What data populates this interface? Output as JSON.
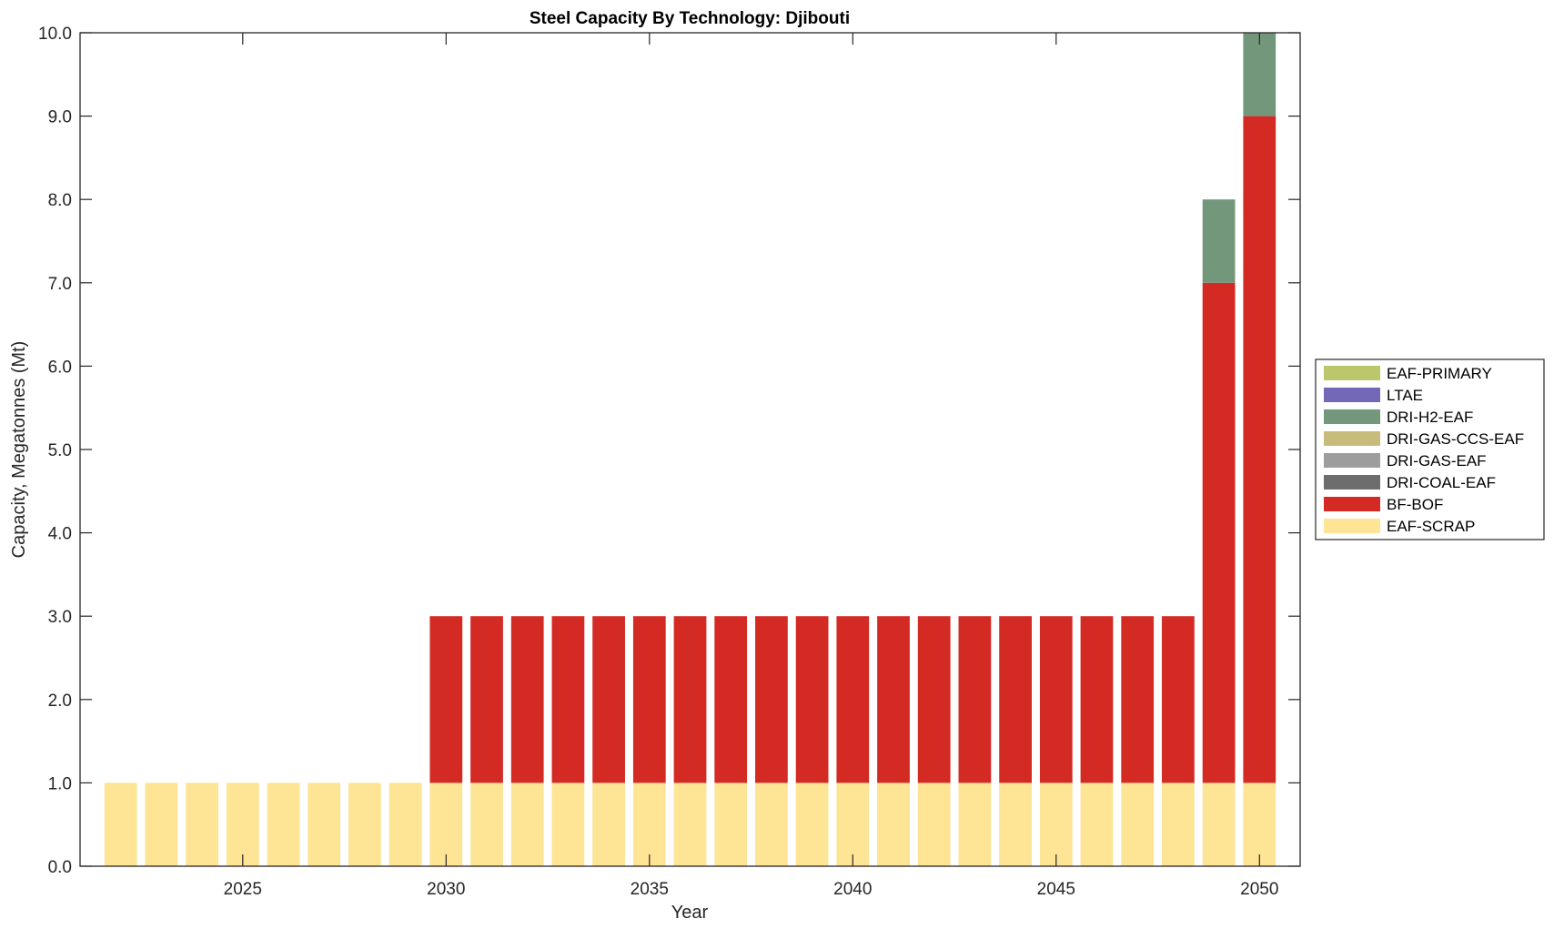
{
  "chart_data": {
    "type": "bar",
    "stacked": true,
    "title": "Steel Capacity By Technology: Djibouti",
    "xlabel": "Year",
    "ylabel": "Capacity, Megatonnes (Mt)",
    "xlim": [
      2021,
      2051
    ],
    "ylim": [
      0,
      10
    ],
    "xticks": [
      2025,
      2030,
      2035,
      2040,
      2045,
      2050
    ],
    "yticks": [
      "0.0",
      "1.0",
      "2.0",
      "3.0",
      "4.0",
      "5.0",
      "6.0",
      "7.0",
      "8.0",
      "9.0",
      "10.0"
    ],
    "grid": false,
    "legend_position": "right",
    "categories": [
      2022,
      2023,
      2024,
      2025,
      2026,
      2027,
      2028,
      2029,
      2030,
      2031,
      2032,
      2033,
      2034,
      2035,
      2036,
      2037,
      2038,
      2039,
      2040,
      2041,
      2042,
      2043,
      2044,
      2045,
      2046,
      2047,
      2048,
      2049,
      2050
    ],
    "series": [
      {
        "name": "EAF-SCRAP",
        "color": "#FEE495",
        "values": [
          1,
          1,
          1,
          1,
          1,
          1,
          1,
          1,
          1,
          1,
          1,
          1,
          1,
          1,
          1,
          1,
          1,
          1,
          1,
          1,
          1,
          1,
          1,
          1,
          1,
          1,
          1,
          1,
          1
        ]
      },
      {
        "name": "BF-BOF",
        "color": "#D42A24",
        "values": [
          0,
          0,
          0,
          0,
          0,
          0,
          0,
          0,
          2,
          2,
          2,
          2,
          2,
          2,
          2,
          2,
          2,
          2,
          2,
          2,
          2,
          2,
          2,
          2,
          2,
          2,
          2,
          6,
          8
        ]
      },
      {
        "name": "DRI-COAL-EAF",
        "color": "#6D6D6D",
        "values": [
          0,
          0,
          0,
          0,
          0,
          0,
          0,
          0,
          0,
          0,
          0,
          0,
          0,
          0,
          0,
          0,
          0,
          0,
          0,
          0,
          0,
          0,
          0,
          0,
          0,
          0,
          0,
          0,
          0
        ]
      },
      {
        "name": "DRI-GAS-EAF",
        "color": "#9D9D9D",
        "values": [
          0,
          0,
          0,
          0,
          0,
          0,
          0,
          0,
          0,
          0,
          0,
          0,
          0,
          0,
          0,
          0,
          0,
          0,
          0,
          0,
          0,
          0,
          0,
          0,
          0,
          0,
          0,
          0,
          0
        ]
      },
      {
        "name": "DRI-GAS-CCS-EAF",
        "color": "#C7BC7C",
        "values": [
          0,
          0,
          0,
          0,
          0,
          0,
          0,
          0,
          0,
          0,
          0,
          0,
          0,
          0,
          0,
          0,
          0,
          0,
          0,
          0,
          0,
          0,
          0,
          0,
          0,
          0,
          0,
          0,
          0
        ]
      },
      {
        "name": "DRI-H2-EAF",
        "color": "#72977A",
        "values": [
          0,
          0,
          0,
          0,
          0,
          0,
          0,
          0,
          0,
          0,
          0,
          0,
          0,
          0,
          0,
          0,
          0,
          0,
          0,
          0,
          0,
          0,
          0,
          0,
          0,
          0,
          0,
          1,
          1
        ]
      },
      {
        "name": "LTAE",
        "color": "#7367B8",
        "values": [
          0,
          0,
          0,
          0,
          0,
          0,
          0,
          0,
          0,
          0,
          0,
          0,
          0,
          0,
          0,
          0,
          0,
          0,
          0,
          0,
          0,
          0,
          0,
          0,
          0,
          0,
          0,
          0,
          0
        ]
      },
      {
        "name": "EAF-PRIMARY",
        "color": "#BCC66A",
        "values": [
          0,
          0,
          0,
          0,
          0,
          0,
          0,
          0,
          0,
          0,
          0,
          0,
          0,
          0,
          0,
          0,
          0,
          0,
          0,
          0,
          0,
          0,
          0,
          0,
          0,
          0,
          0,
          0,
          0
        ]
      }
    ]
  }
}
